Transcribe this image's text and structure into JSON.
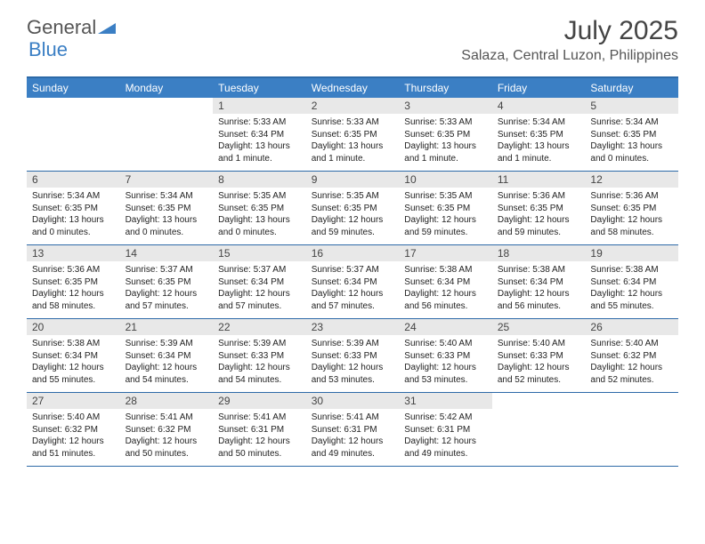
{
  "logo": {
    "text1": "General",
    "text2": "Blue"
  },
  "title": "July 2025",
  "location": "Salaza, Central Luzon, Philippines",
  "colors": {
    "header_bg": "#3b7fc4",
    "border": "#2d6aa8",
    "daynum_bg": "#e8e8e8",
    "text": "#222222"
  },
  "weekdays": [
    "Sunday",
    "Monday",
    "Tuesday",
    "Wednesday",
    "Thursday",
    "Friday",
    "Saturday"
  ],
  "weeks": [
    [
      null,
      null,
      {
        "n": "1",
        "sr": "5:33 AM",
        "ss": "6:34 PM",
        "dl": "13 hours and 1 minute."
      },
      {
        "n": "2",
        "sr": "5:33 AM",
        "ss": "6:35 PM",
        "dl": "13 hours and 1 minute."
      },
      {
        "n": "3",
        "sr": "5:33 AM",
        "ss": "6:35 PM",
        "dl": "13 hours and 1 minute."
      },
      {
        "n": "4",
        "sr": "5:34 AM",
        "ss": "6:35 PM",
        "dl": "13 hours and 1 minute."
      },
      {
        "n": "5",
        "sr": "5:34 AM",
        "ss": "6:35 PM",
        "dl": "13 hours and 0 minutes."
      }
    ],
    [
      {
        "n": "6",
        "sr": "5:34 AM",
        "ss": "6:35 PM",
        "dl": "13 hours and 0 minutes."
      },
      {
        "n": "7",
        "sr": "5:34 AM",
        "ss": "6:35 PM",
        "dl": "13 hours and 0 minutes."
      },
      {
        "n": "8",
        "sr": "5:35 AM",
        "ss": "6:35 PM",
        "dl": "13 hours and 0 minutes."
      },
      {
        "n": "9",
        "sr": "5:35 AM",
        "ss": "6:35 PM",
        "dl": "12 hours and 59 minutes."
      },
      {
        "n": "10",
        "sr": "5:35 AM",
        "ss": "6:35 PM",
        "dl": "12 hours and 59 minutes."
      },
      {
        "n": "11",
        "sr": "5:36 AM",
        "ss": "6:35 PM",
        "dl": "12 hours and 59 minutes."
      },
      {
        "n": "12",
        "sr": "5:36 AM",
        "ss": "6:35 PM",
        "dl": "12 hours and 58 minutes."
      }
    ],
    [
      {
        "n": "13",
        "sr": "5:36 AM",
        "ss": "6:35 PM",
        "dl": "12 hours and 58 minutes."
      },
      {
        "n": "14",
        "sr": "5:37 AM",
        "ss": "6:35 PM",
        "dl": "12 hours and 57 minutes."
      },
      {
        "n": "15",
        "sr": "5:37 AM",
        "ss": "6:34 PM",
        "dl": "12 hours and 57 minutes."
      },
      {
        "n": "16",
        "sr": "5:37 AM",
        "ss": "6:34 PM",
        "dl": "12 hours and 57 minutes."
      },
      {
        "n": "17",
        "sr": "5:38 AM",
        "ss": "6:34 PM",
        "dl": "12 hours and 56 minutes."
      },
      {
        "n": "18",
        "sr": "5:38 AM",
        "ss": "6:34 PM",
        "dl": "12 hours and 56 minutes."
      },
      {
        "n": "19",
        "sr": "5:38 AM",
        "ss": "6:34 PM",
        "dl": "12 hours and 55 minutes."
      }
    ],
    [
      {
        "n": "20",
        "sr": "5:38 AM",
        "ss": "6:34 PM",
        "dl": "12 hours and 55 minutes."
      },
      {
        "n": "21",
        "sr": "5:39 AM",
        "ss": "6:34 PM",
        "dl": "12 hours and 54 minutes."
      },
      {
        "n": "22",
        "sr": "5:39 AM",
        "ss": "6:33 PM",
        "dl": "12 hours and 54 minutes."
      },
      {
        "n": "23",
        "sr": "5:39 AM",
        "ss": "6:33 PM",
        "dl": "12 hours and 53 minutes."
      },
      {
        "n": "24",
        "sr": "5:40 AM",
        "ss": "6:33 PM",
        "dl": "12 hours and 53 minutes."
      },
      {
        "n": "25",
        "sr": "5:40 AM",
        "ss": "6:33 PM",
        "dl": "12 hours and 52 minutes."
      },
      {
        "n": "26",
        "sr": "5:40 AM",
        "ss": "6:32 PM",
        "dl": "12 hours and 52 minutes."
      }
    ],
    [
      {
        "n": "27",
        "sr": "5:40 AM",
        "ss": "6:32 PM",
        "dl": "12 hours and 51 minutes."
      },
      {
        "n": "28",
        "sr": "5:41 AM",
        "ss": "6:32 PM",
        "dl": "12 hours and 50 minutes."
      },
      {
        "n": "29",
        "sr": "5:41 AM",
        "ss": "6:31 PM",
        "dl": "12 hours and 50 minutes."
      },
      {
        "n": "30",
        "sr": "5:41 AM",
        "ss": "6:31 PM",
        "dl": "12 hours and 49 minutes."
      },
      {
        "n": "31",
        "sr": "5:42 AM",
        "ss": "6:31 PM",
        "dl": "12 hours and 49 minutes."
      },
      null,
      null
    ]
  ],
  "labels": {
    "sunrise": "Sunrise:",
    "sunset": "Sunset:",
    "daylight": "Daylight:"
  }
}
